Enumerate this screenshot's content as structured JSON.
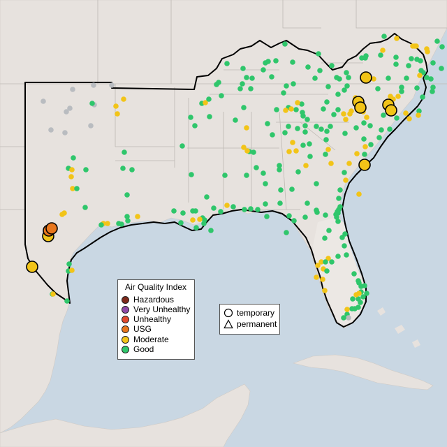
{
  "legend": {
    "title": "Air Quality Index",
    "categories": [
      {
        "label": "Hazardous",
        "color": "#7e2a1c"
      },
      {
        "label": "Very Unhealthy",
        "color": "#8e4aa8"
      },
      {
        "label": "Unhealthy",
        "color": "#e14a2e"
      },
      {
        "label": "USG",
        "color": "#e8761c"
      },
      {
        "label": "Moderate",
        "color": "#f2c418"
      },
      {
        "label": "Good",
        "color": "#2fc66b"
      }
    ]
  },
  "monitor_types": {
    "temporary_label": "temporary",
    "permanent_label": "permanent"
  },
  "colors": {
    "ocean": "#c9d7e3",
    "land": "#e7e2de",
    "highlight_land": "#ece8e4",
    "no_data_marker": "#b9bcc0",
    "border": "#000000"
  },
  "map_markers": {
    "good_count_approx": 230,
    "moderate_count_approx": 95,
    "usg_sites": 2,
    "no_data_sites": 18,
    "large_temporary_sites": 11
  }
}
